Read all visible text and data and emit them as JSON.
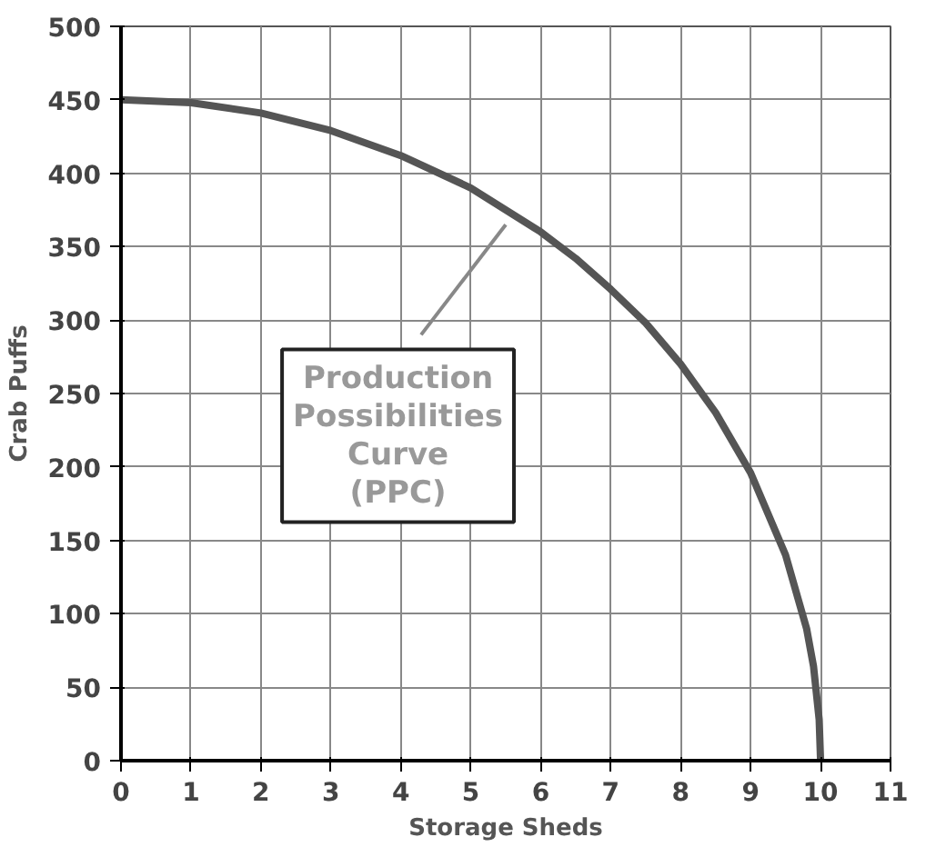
{
  "chart_data": {
    "type": "line",
    "xlabel": "Storage Sheds",
    "ylabel": "Crab Puffs",
    "x": [
      0,
      1,
      2,
      3,
      4,
      5,
      6,
      6.5,
      7,
      7.5,
      8,
      8.5,
      9,
      9.5,
      9.8,
      9.9,
      9.98,
      10
    ],
    "series": [
      {
        "color": "#555555",
        "values": [
          450,
          448,
          441,
          429,
          412,
          390,
          360,
          342,
          321,
          298,
          270,
          237,
          196,
          140,
          90,
          64,
          28,
          0
        ]
      }
    ],
    "xlim": [
      0,
      11
    ],
    "xticks": [
      0,
      1,
      2,
      3,
      4,
      5,
      6,
      7,
      8,
      9,
      10,
      11
    ],
    "ylim": [
      0,
      500
    ],
    "yticks": [
      0,
      50,
      100,
      150,
      200,
      250,
      300,
      350,
      400,
      450,
      500
    ],
    "grid": true,
    "line_style": "solid",
    "annotations": [
      {
        "text": "Production\nPossibilities\nCurve\n(PPC)",
        "x": 5.5,
        "y": 365
      }
    ]
  }
}
